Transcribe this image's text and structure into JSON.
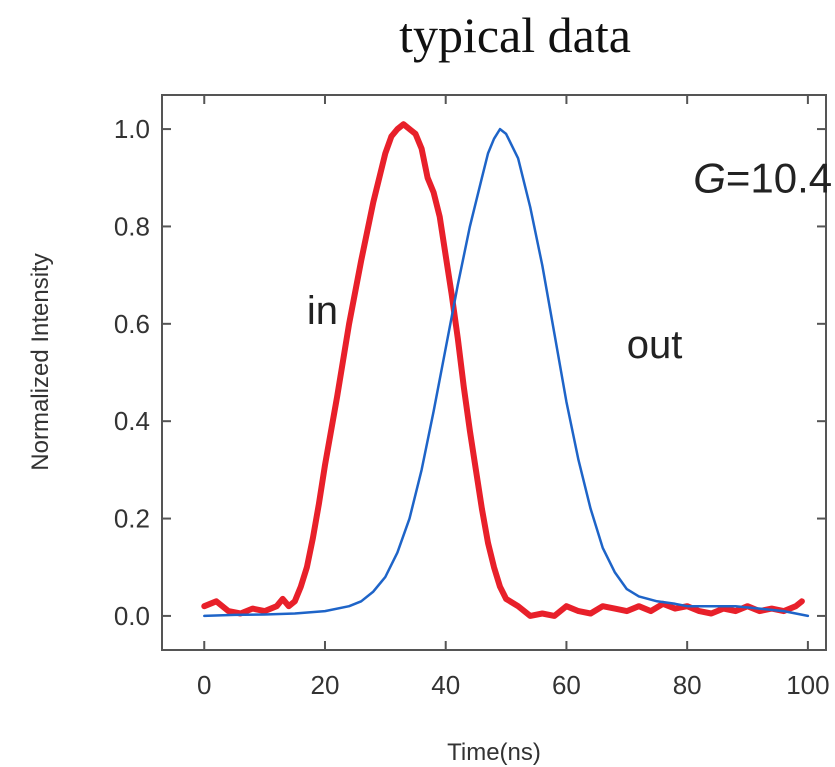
{
  "chart_data": {
    "type": "line",
    "title": "typical data",
    "xlabel": "Time(ns)",
    "ylabel": "Normalized Intensity",
    "xlim": [
      -7,
      103
    ],
    "ylim": [
      -0.07,
      1.07
    ],
    "xticks": [
      "0",
      "20",
      "40",
      "60",
      "80",
      "100"
    ],
    "yticks": [
      "0.0",
      "0.2",
      "0.4",
      "0.6",
      "0.8",
      "1.0"
    ],
    "grid": false,
    "legend": "none",
    "annotations": [
      {
        "text": "in",
        "x": 17,
        "y": 0.6
      },
      {
        "text": "out",
        "x": 70,
        "y": 0.53
      }
    ],
    "gain_label": {
      "italic": "G",
      "rest": "=10.4",
      "x": 81,
      "y": 0.87
    },
    "series": [
      {
        "color": "#e8202a",
        "points": [
          [
            0,
            0.02
          ],
          [
            2,
            0.03
          ],
          [
            4,
            0.01
          ],
          [
            6,
            0.005
          ],
          [
            8,
            0.015
          ],
          [
            10,
            0.01
          ],
          [
            12,
            0.02
          ],
          [
            13,
            0.035
          ],
          [
            14,
            0.02
          ],
          [
            15,
            0.03
          ],
          [
            16,
            0.06
          ],
          [
            17,
            0.1
          ],
          [
            18,
            0.16
          ],
          [
            19,
            0.23
          ],
          [
            20,
            0.31
          ],
          [
            22,
            0.45
          ],
          [
            24,
            0.6
          ],
          [
            26,
            0.73
          ],
          [
            28,
            0.85
          ],
          [
            30,
            0.95
          ],
          [
            31,
            0.985
          ],
          [
            32,
            1.0
          ],
          [
            33,
            1.01
          ],
          [
            34,
            1.0
          ],
          [
            35,
            0.99
          ],
          [
            36,
            0.96
          ],
          [
            37,
            0.9
          ],
          [
            38,
            0.87
          ],
          [
            39,
            0.82
          ],
          [
            40,
            0.74
          ],
          [
            41,
            0.66
          ],
          [
            42,
            0.57
          ],
          [
            43,
            0.47
          ],
          [
            44,
            0.38
          ],
          [
            45,
            0.3
          ],
          [
            46,
            0.22
          ],
          [
            47,
            0.15
          ],
          [
            48,
            0.1
          ],
          [
            49,
            0.06
          ],
          [
            50,
            0.035
          ],
          [
            52,
            0.02
          ],
          [
            54,
            0.0
          ],
          [
            56,
            0.005
          ],
          [
            58,
            0.0
          ],
          [
            60,
            0.02
          ],
          [
            62,
            0.01
          ],
          [
            64,
            0.005
          ],
          [
            66,
            0.02
          ],
          [
            68,
            0.015
          ],
          [
            70,
            0.01
          ],
          [
            72,
            0.02
          ],
          [
            74,
            0.01
          ],
          [
            76,
            0.025
          ],
          [
            78,
            0.015
          ],
          [
            80,
            0.02
          ],
          [
            82,
            0.01
          ],
          [
            84,
            0.005
          ],
          [
            86,
            0.015
          ],
          [
            88,
            0.01
          ],
          [
            90,
            0.02
          ],
          [
            92,
            0.01
          ],
          [
            94,
            0.015
          ],
          [
            96,
            0.01
          ],
          [
            98,
            0.02
          ],
          [
            99,
            0.03
          ]
        ]
      },
      {
        "color": "#1e64c8",
        "points": [
          [
            0,
            0.0
          ],
          [
            5,
            0.002
          ],
          [
            10,
            0.003
          ],
          [
            15,
            0.005
          ],
          [
            20,
            0.01
          ],
          [
            24,
            0.02
          ],
          [
            26,
            0.03
          ],
          [
            28,
            0.05
          ],
          [
            30,
            0.08
          ],
          [
            32,
            0.13
          ],
          [
            34,
            0.2
          ],
          [
            36,
            0.3
          ],
          [
            38,
            0.42
          ],
          [
            40,
            0.55
          ],
          [
            42,
            0.68
          ],
          [
            44,
            0.8
          ],
          [
            46,
            0.9
          ],
          [
            47,
            0.95
          ],
          [
            48,
            0.98
          ],
          [
            49,
            1.0
          ],
          [
            50,
            0.99
          ],
          [
            52,
            0.94
          ],
          [
            54,
            0.84
          ],
          [
            56,
            0.72
          ],
          [
            58,
            0.58
          ],
          [
            60,
            0.44
          ],
          [
            62,
            0.32
          ],
          [
            64,
            0.22
          ],
          [
            66,
            0.14
          ],
          [
            68,
            0.09
          ],
          [
            70,
            0.055
          ],
          [
            72,
            0.04
          ],
          [
            75,
            0.03
          ],
          [
            78,
            0.025
          ],
          [
            80,
            0.02
          ],
          [
            84,
            0.02
          ],
          [
            88,
            0.02
          ],
          [
            92,
            0.015
          ],
          [
            96,
            0.01
          ],
          [
            100,
            0.0
          ]
        ]
      }
    ]
  }
}
